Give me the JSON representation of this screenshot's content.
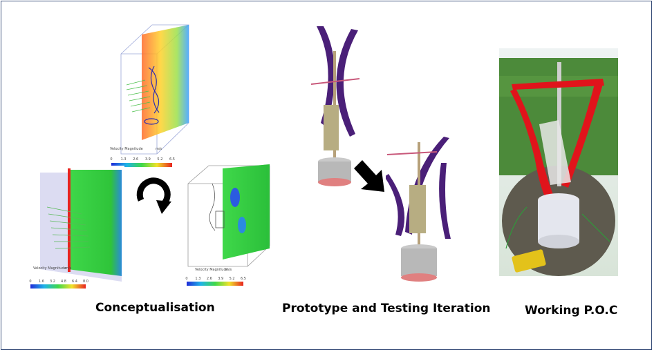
{
  "captions": {
    "conceptualisation": "Conceptualisation",
    "prototype": "Prototype and Testing Iteration",
    "working": "Working P.O.C"
  },
  "sim_labels": {
    "legend_title": "Velocity Magnitude",
    "units": "m/s",
    "top_ticks": [
      "0",
      "1.3",
      "2.6",
      "3.9",
      "5.2",
      "6.5"
    ],
    "left_ticks": [
      "0",
      "1.6",
      "3.2",
      "4.8",
      "6.4",
      "8.0"
    ],
    "right_ticks": [
      "0",
      "1.3",
      "2.6",
      "3.9",
      "5.2",
      "6.5"
    ]
  },
  "colors": {
    "frame": "#3a4f7a",
    "blade_purple": "#4a1f78",
    "blade_red": "#e0141b",
    "sim_green": "#3cc43c",
    "arrow": "#000000"
  },
  "icons": {
    "cycle": "circular-arrow-icon",
    "next": "diagonal-arrow-icon"
  }
}
